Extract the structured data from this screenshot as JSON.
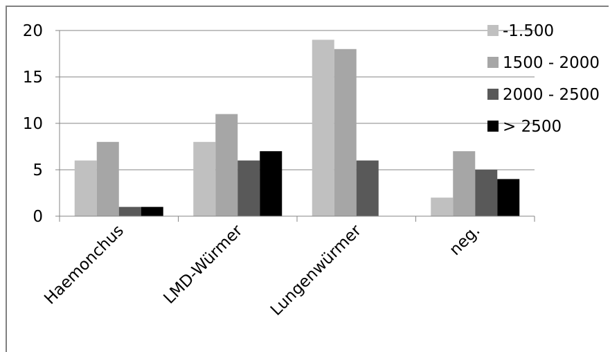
{
  "chart_data": {
    "type": "bar",
    "categories": [
      "Haemonchus",
      "LMD-Würmer",
      "Lungenwürmer",
      "neg."
    ],
    "series": [
      {
        "name": "-1.500",
        "values": [
          6,
          8,
          19,
          2
        ],
        "color": "#c0c0c0"
      },
      {
        "name": "1500 - 2000",
        "values": [
          8,
          11,
          18,
          7
        ],
        "color": "#a6a6a6"
      },
      {
        "name": "2000 - 2500",
        "values": [
          1,
          6,
          6,
          5
        ],
        "color": "#595959"
      },
      {
        "name": "> 2500",
        "values": [
          1,
          7,
          0,
          4
        ],
        "color": "#000000"
      }
    ],
    "ylim": [
      0,
      20
    ],
    "yticks": [
      0,
      5,
      10,
      15,
      20
    ],
    "title": "",
    "xlabel": "",
    "ylabel": "",
    "grid": "horizontal",
    "legend_position": "top-right"
  }
}
